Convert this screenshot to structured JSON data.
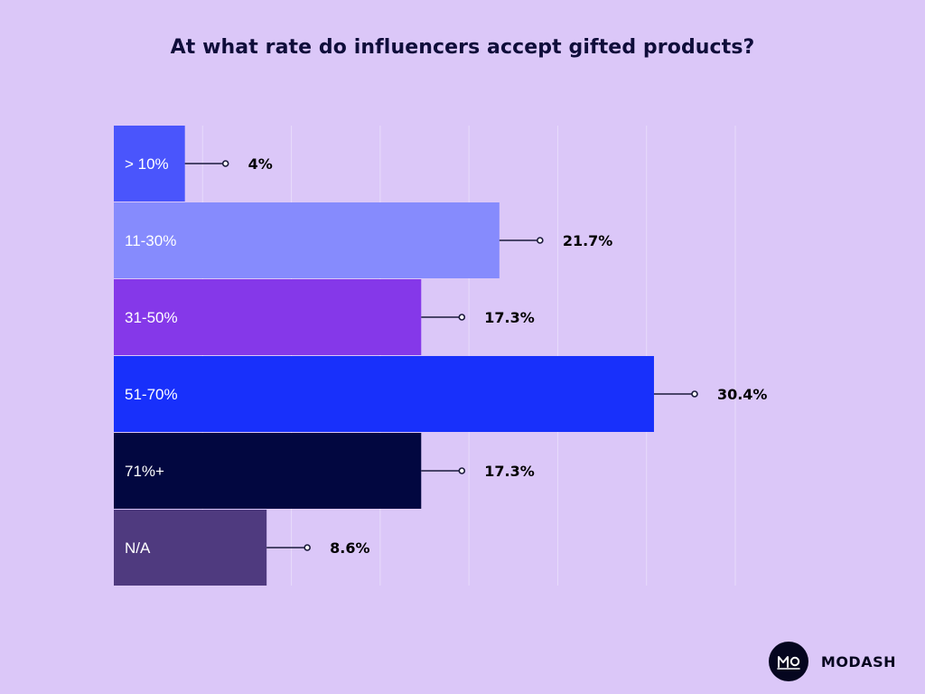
{
  "chart_data": {
    "type": "bar",
    "orientation": "horizontal",
    "title": "At what rate do influencers accept gifted products?",
    "xlabel": "",
    "ylabel": "",
    "xlim": [
      0,
      35
    ],
    "grid": true,
    "categories": [
      "> 10%",
      "11-30%",
      "31-50%",
      "51-70%",
      "71%+",
      "N/A"
    ],
    "values": [
      4,
      21.7,
      17.3,
      30.4,
      17.3,
      8.6
    ],
    "value_labels": [
      "4%",
      "21.7%",
      "17.3%",
      "30.4%",
      "17.3%",
      "8.6%"
    ],
    "colors": [
      "#4a55fc",
      "#868bfd",
      "#8538e9",
      "#1830fb",
      "#020740",
      "#4f3a7f"
    ]
  },
  "brand": {
    "name": "MODASH",
    "logo_text": "MO"
  },
  "colors": {
    "background": "#dbc7f8",
    "text_dark": "#0f0d3a",
    "gridline": "#e7dbfa",
    "leader": "#1a1a3a"
  }
}
